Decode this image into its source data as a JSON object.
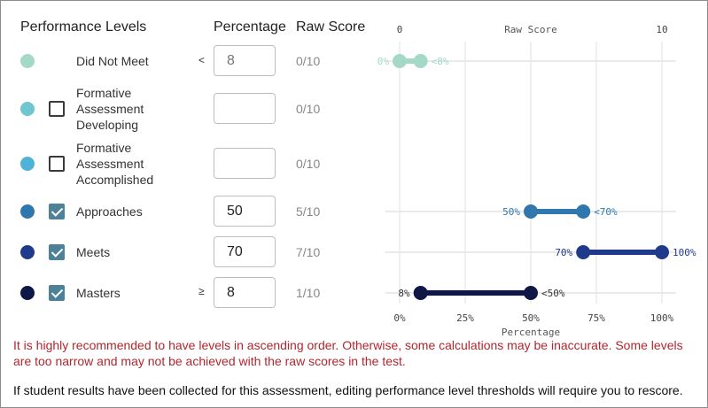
{
  "headers": {
    "levels": "Performance Levels",
    "percentage": "Percentage",
    "raw_score": "Raw Score"
  },
  "levels": [
    {
      "name": "Did Not Meet",
      "color": "#a3d9c6",
      "has_checkbox": false,
      "checked": false,
      "operator": "<",
      "value": "",
      "placeholder": "8",
      "raw": "0/10"
    },
    {
      "name": "Formative Assessment Developing",
      "color": "#6ec6cf",
      "has_checkbox": true,
      "checked": false,
      "operator": "",
      "value": "",
      "placeholder": "",
      "raw": "0/10"
    },
    {
      "name": "Formative Assessment Accomplished",
      "color": "#4fb3d8",
      "has_checkbox": true,
      "checked": false,
      "operator": "",
      "value": "",
      "placeholder": "",
      "raw": "0/10"
    },
    {
      "name": "Approaches",
      "color": "#2f77ad",
      "has_checkbox": true,
      "checked": true,
      "operator": "",
      "value": "50",
      "placeholder": "",
      "raw": "5/10"
    },
    {
      "name": "Meets",
      "color": "#1f3a8a",
      "has_checkbox": true,
      "checked": true,
      "operator": "",
      "value": "70",
      "placeholder": "",
      "raw": "7/10"
    },
    {
      "name": "Masters",
      "color": "#0f1746",
      "has_checkbox": true,
      "checked": true,
      "operator": "≥",
      "value": "8",
      "placeholder": "",
      "raw": "1/10"
    }
  ],
  "chart_data": {
    "type": "range",
    "top_axis": {
      "label": "Raw Score",
      "min_label": "0",
      "max_label": "10",
      "min": 0,
      "max": 10
    },
    "bottom_axis": {
      "label": "Percentage",
      "ticks": [
        0,
        25,
        50,
        75,
        100
      ],
      "tick_labels": [
        "0%",
        "25%",
        "50%",
        "75%",
        "100%"
      ]
    },
    "ranges": [
      {
        "level": "Did Not Meet",
        "start": 0,
        "end": 8,
        "start_label": "0%",
        "end_label": "<8%",
        "color": "#a3d9c6",
        "row": 0
      },
      {
        "level": "Approaches",
        "start": 50,
        "end": 70,
        "start_label": "50%",
        "end_label": "<70%",
        "color": "#2f77ad",
        "row": 3
      },
      {
        "level": "Meets",
        "start": 70,
        "end": 100,
        "start_label": "70%",
        "end_label": "100%",
        "color": "#1f3a8a",
        "row": 4
      },
      {
        "level": "Masters",
        "start": 8,
        "end": 50,
        "start_label": "8%",
        "end_label": "<50%",
        "color": "#0f1746",
        "row": 5
      }
    ]
  },
  "messages": {
    "warning": "It is highly recommended to have levels in ascending order. Otherwise, some calculations may be inaccurate. Some levels are too narrow and may not be achieved with the raw scores in the test.",
    "rescore_note": "If student results have been collected for this assessment, editing performance level thresholds will require you to rescore."
  }
}
